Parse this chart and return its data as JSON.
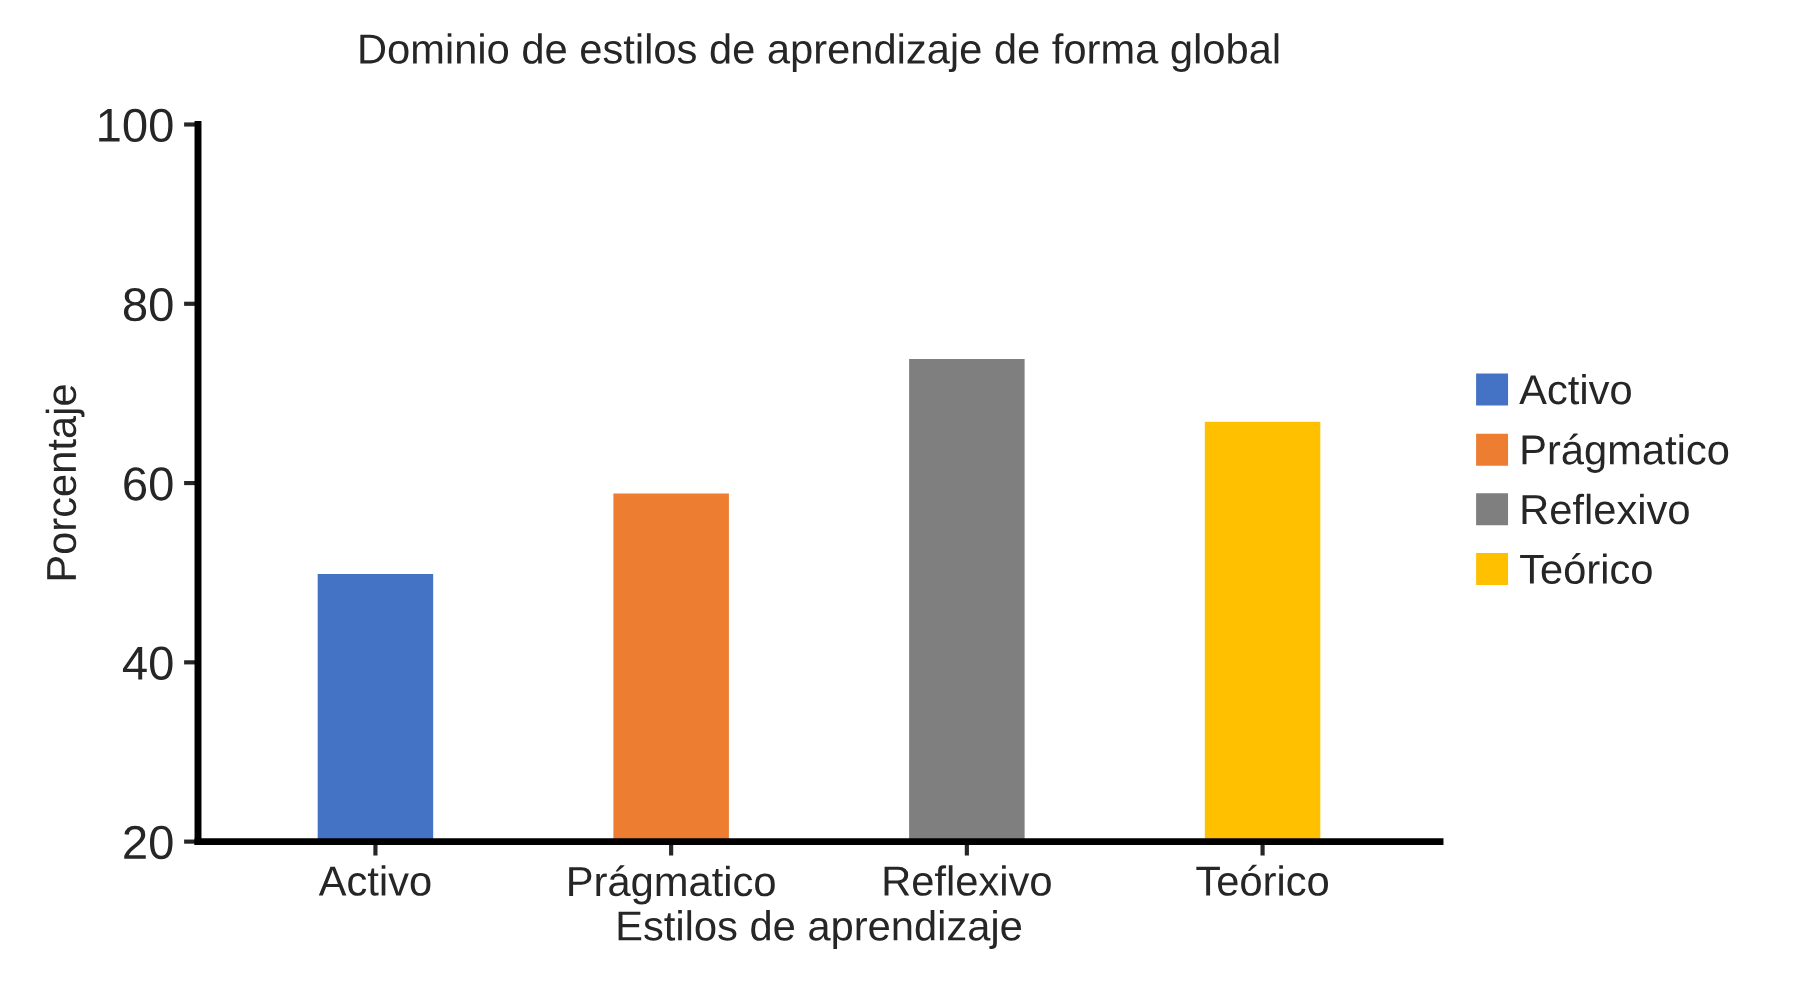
{
  "chart_data": {
    "type": "bar",
    "title": "Dominio de estilos de aprendizaje de forma global",
    "xlabel": "Estilos de aprendizaje",
    "ylabel": "Porcentaje",
    "categories": [
      "Activo",
      "Prágmatico",
      "Reflexivo",
      "Teórico"
    ],
    "series": [
      {
        "name": "Activo",
        "color": "#4472c4",
        "values": [
          50,
          null,
          null,
          null
        ]
      },
      {
        "name": "Prágmatico",
        "color": "#ed7d31",
        "values": [
          null,
          59,
          null,
          null
        ]
      },
      {
        "name": "Reflexivo",
        "color": "#7f7f7f",
        "values": [
          null,
          null,
          74,
          null
        ]
      },
      {
        "name": "Teórico",
        "color": "#ffc000",
        "values": [
          null,
          null,
          null,
          67
        ]
      }
    ],
    "ylim": [
      20,
      100
    ],
    "yticks": [
      20,
      40,
      60,
      80,
      100
    ],
    "grid": false,
    "legend": "right"
  }
}
